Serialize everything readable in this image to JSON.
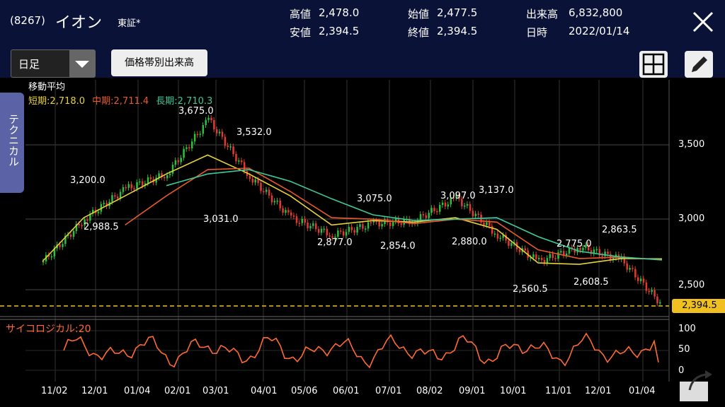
{
  "header": {
    "code": "(8267)",
    "name": "イオン",
    "market": "東証*",
    "stats": [
      {
        "label": "高値",
        "value": "2,478.0"
      },
      {
        "label": "安値",
        "value": "2,394.5"
      },
      {
        "label": "始値",
        "value": "2,477.5"
      },
      {
        "label": "終値",
        "value": "2,394.5"
      },
      {
        "label": "出来高",
        "value": "6,832,800"
      },
      {
        "label": "日時",
        "value": "2022/01/14"
      }
    ]
  },
  "toolbar": {
    "period_select": "日足",
    "volume_by_price_button": "価格帯別出来高"
  },
  "side_tab": "テクニカル",
  "moving_average": {
    "title": "移動平均",
    "short": "短期:2,718.0",
    "mid": "中期:2,711.4",
    "long": "長期:2,710.3",
    "colors": {
      "short": "#e8d23a",
      "mid": "#e85a2a",
      "long": "#3ec99a"
    }
  },
  "y_axis": [
    "3,500",
    "3,000",
    "2,500"
  ],
  "current_price_tag": "2,394.5",
  "oscillator": {
    "label": "サイコロジカル:20",
    "ticks": [
      "100",
      "50",
      "0"
    ]
  },
  "x_axis": [
    "11/02",
    "12/01",
    "01/04",
    "02/01",
    "03/01",
    "04/01",
    "05/06",
    "06/01",
    "07/01",
    "08/02",
    "09/01",
    "10/01",
    "11/01",
    "12/01",
    "01/04"
  ],
  "annotations": [
    "3,675.0",
    "3,532.0",
    "3,200.0",
    "2,988.5",
    "3,031.0",
    "3,075.0",
    "3,097.0",
    "3,137.0",
    "2,877.0",
    "2,854.0",
    "2,880.0",
    "2,775.0",
    "2,863.5",
    "2,560.5",
    "2,608.5"
  ],
  "chart_data": {
    "type": "line",
    "title": "",
    "x": [
      "11/02",
      "12/01",
      "01/04",
      "02/01",
      "03/01",
      "04/01",
      "05/06",
      "06/01",
      "07/01",
      "08/02",
      "09/01",
      "10/01",
      "11/01",
      "12/01",
      "01/04",
      "01/14"
    ],
    "series": [
      {
        "name": "短期",
        "values": [
          2700,
          3000,
          3150,
          3300,
          3430,
          3300,
          3150,
          2950,
          2980,
          2970,
          3000,
          2920,
          2690,
          2680,
          2720,
          2718
        ]
      },
      {
        "name": "中期",
        "values": [
          null,
          null,
          2950,
          3150,
          3330,
          3340,
          3180,
          3000,
          2990,
          2960,
          2990,
          2970,
          2780,
          2720,
          2730,
          2711
        ]
      },
      {
        "name": "長期",
        "values": [
          null,
          null,
          null,
          3220,
          3300,
          3330,
          3250,
          3130,
          3020,
          2980,
          2990,
          3000,
          2870,
          2770,
          2730,
          2710
        ]
      }
    ],
    "close": [
      2700,
      2990,
      3200,
      3300,
      3675,
      3280,
      3000,
      2880,
      2960,
      2980,
      3137,
      2880,
      2700,
      2800,
      2710,
      2394.5
    ],
    "ylim": [
      2350,
      3800
    ],
    "grid": true
  }
}
